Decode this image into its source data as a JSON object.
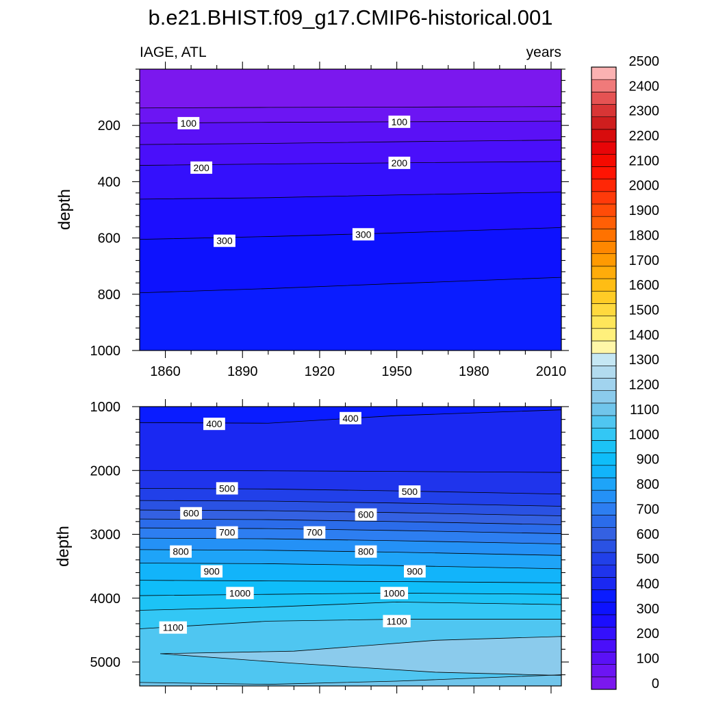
{
  "figure": {
    "title": "b.e21.BHIST.f09_g17.CMIP6-historical.001",
    "variable_label": "IAGE, ATL",
    "units_label": "years"
  },
  "chart_data": [
    {
      "type": "heatmap",
      "subtype": "filled-contour",
      "panel": "upper",
      "title": "b.e21.BHIST.f09_g17.CMIP6-historical.001",
      "left_string": "IAGE, ATL",
      "right_string": "years",
      "xlabel": "",
      "ylabel": "depth",
      "xlim": [
        1850,
        2014
      ],
      "ylim": [
        1000,
        0
      ],
      "y_reversed": true,
      "x_ticks": [
        1860,
        1890,
        1920,
        1950,
        1980,
        2010
      ],
      "y_ticks": [
        200,
        400,
        600,
        800,
        1000
      ],
      "contour_interval": 50,
      "contours": [
        {
          "level": 50,
          "x": [
            1850,
            1900,
            1950,
            2014
          ],
          "y": [
            138,
            136,
            135,
            133
          ]
        },
        {
          "level": 100,
          "x": [
            1850,
            1900,
            1950,
            2014
          ],
          "y": [
            192,
            189,
            187,
            185
          ]
        },
        {
          "level": 150,
          "x": [
            1850,
            1900,
            1950,
            2014
          ],
          "y": [
            268,
            264,
            258,
            252
          ]
        },
        {
          "level": 200,
          "x": [
            1850,
            1900,
            1950,
            2014
          ],
          "y": [
            342,
            337,
            333,
            328
          ]
        },
        {
          "level": 250,
          "x": [
            1850,
            1900,
            1950,
            2014
          ],
          "y": [
            462,
            457,
            447,
            437
          ]
        },
        {
          "level": 300,
          "x": [
            1850,
            1900,
            1950,
            2014
          ],
          "y": [
            605,
            595,
            582,
            563
          ]
        },
        {
          "level": 350,
          "x": [
            1850,
            1900,
            1950,
            2014
          ],
          "y": [
            795,
            780,
            762,
            740
          ]
        }
      ],
      "contour_labels": [
        {
          "text": "100",
          "x": 1869,
          "y": 192
        },
        {
          "text": "100",
          "x": 1951,
          "y": 187
        },
        {
          "text": "200",
          "x": 1874,
          "y": 350
        },
        {
          "text": "200",
          "x": 1951,
          "y": 333
        },
        {
          "text": "300",
          "x": 1883,
          "y": 610
        },
        {
          "text": "300",
          "x": 1937,
          "y": 587
        }
      ]
    },
    {
      "type": "heatmap",
      "subtype": "filled-contour",
      "panel": "lower",
      "xlabel": "",
      "ylabel": "depth",
      "xlim": [
        1850,
        2014
      ],
      "ylim": [
        5375,
        1000
      ],
      "y_reversed": true,
      "y_ticks": [
        1000,
        2000,
        3000,
        4000,
        5000
      ],
      "contour_interval": 50,
      "contours": [
        {
          "level": 400,
          "x": [
            1850,
            1900,
            1950,
            2014
          ],
          "y": [
            1250,
            1260,
            1140,
            1050
          ]
        },
        {
          "level": 450,
          "x": [
            1850,
            1900,
            1950,
            2014
          ],
          "y": [
            2000,
            2005,
            2015,
            2030
          ]
        },
        {
          "level": 500,
          "x": [
            1850,
            1900,
            1950,
            2014
          ],
          "y": [
            2280,
            2290,
            2320,
            2370
          ]
        },
        {
          "level": 550,
          "x": [
            1850,
            1900,
            1950,
            2014
          ],
          "y": [
            2470,
            2480,
            2510,
            2560
          ]
        },
        {
          "level": 600,
          "x": [
            1850,
            1900,
            1950,
            2014
          ],
          "y": [
            2620,
            2630,
            2660,
            2710
          ]
        },
        {
          "level": 650,
          "x": [
            1850,
            1900,
            1950,
            2014
          ],
          "y": [
            2760,
            2770,
            2800,
            2850
          ]
        },
        {
          "level": 700,
          "x": [
            1850,
            1900,
            1950,
            2014
          ],
          "y": [
            2900,
            2910,
            2940,
            2990
          ]
        },
        {
          "level": 750,
          "x": [
            1850,
            1900,
            1950,
            2014
          ],
          "y": [
            3060,
            3070,
            3100,
            3150
          ]
        },
        {
          "level": 800,
          "x": [
            1850,
            1900,
            1950,
            2014
          ],
          "y": [
            3240,
            3250,
            3280,
            3330
          ]
        },
        {
          "level": 850,
          "x": [
            1850,
            1900,
            1950,
            2014
          ],
          "y": [
            3450,
            3460,
            3490,
            3540
          ]
        },
        {
          "level": 900,
          "x": [
            1850,
            1900,
            1950,
            2014
          ],
          "y": [
            3720,
            3730,
            3740,
            3760
          ]
        },
        {
          "level": 950,
          "x": [
            1850,
            1900,
            1950,
            2014
          ],
          "y": [
            3960,
            3940,
            3920,
            3940
          ]
        },
        {
          "level": 1000,
          "x": [
            1850,
            1900,
            1950,
            2014
          ],
          "y": [
            4190,
            4140,
            4060,
            4100
          ]
        },
        {
          "level": 1050,
          "x": [
            1850,
            1900,
            1950,
            2014
          ],
          "y": [
            4480,
            4360,
            4330,
            4330
          ]
        },
        {
          "level": 1100,
          "x": [
            1850,
            1900,
            1950,
            2014
          ],
          "y": [
            5320,
            5350,
            5300,
            5200
          ]
        }
      ],
      "region_1150": {
        "x": [
          1858,
          1910,
          1965,
          2014
        ],
        "upper_y": [
          4870,
          4830,
          4660,
          4600
        ],
        "lower_y": [
          4870,
          5020,
          5160,
          5210
        ]
      },
      "contour_labels": [
        {
          "text": "400",
          "x": 1879,
          "y": 1270
        },
        {
          "text": "400",
          "x": 1932,
          "y": 1180
        },
        {
          "text": "500",
          "x": 1884,
          "y": 2280
        },
        {
          "text": "500",
          "x": 1955,
          "y": 2330
        },
        {
          "text": "600",
          "x": 1870,
          "y": 2670
        },
        {
          "text": "600",
          "x": 1938,
          "y": 2690
        },
        {
          "text": "700",
          "x": 1884,
          "y": 2970
        },
        {
          "text": "700",
          "x": 1918,
          "y": 2970
        },
        {
          "text": "800",
          "x": 1866,
          "y": 3270
        },
        {
          "text": "800",
          "x": 1938,
          "y": 3270
        },
        {
          "text": "900",
          "x": 1878,
          "y": 3580
        },
        {
          "text": "900",
          "x": 1957,
          "y": 3580
        },
        {
          "text": "1000",
          "x": 1889,
          "y": 3920
        },
        {
          "text": "1000",
          "x": 1949,
          "y": 3920
        },
        {
          "text": "1100",
          "x": 1863,
          "y": 4460
        },
        {
          "text": "1100",
          "x": 1950,
          "y": 4360
        }
      ]
    }
  ],
  "colorbar": {
    "tick_labels": [
      "2500",
      "2400",
      "2300",
      "2200",
      "2100",
      "2000",
      "1900",
      "1800",
      "1700",
      "1600",
      "1500",
      "1400",
      "1300",
      "1200",
      "1100",
      "1000",
      "900",
      "800",
      "700",
      "600",
      "500",
      "400",
      "300",
      "200",
      "100",
      "0"
    ],
    "colors": [
      "#7b18ee",
      "#6c15f3",
      "#5a11f6",
      "#4a0ffa",
      "#3410fc",
      "#1c0efe",
      "#0d12fe",
      "#0a1cff",
      "#1a28f2",
      "#1f34ec",
      "#2140e9",
      "#2a52e3",
      "#3461e2",
      "#2b6cea",
      "#2d7ef1",
      "#2491f6",
      "#1ea4f8",
      "#12b4fa",
      "#0fbdf9",
      "#1cc3f6",
      "#33c7f5",
      "#4fc6f1",
      "#70c5eb",
      "#8bcbec",
      "#a1d3ee",
      "#b2dbef",
      "#c5e7f4",
      "#fff6a8",
      "#fff07c",
      "#ffe65a",
      "#ffd93e",
      "#ffcc26",
      "#ffbd14",
      "#ffac0a",
      "#ff9a02",
      "#ff8700",
      "#ff7200",
      "#ff5f05",
      "#ff4c08",
      "#ff3a0a",
      "#ff2706",
      "#ff1403",
      "#f50a00",
      "#e80508",
      "#d80c0d",
      "#cf1e1e",
      "#d83535",
      "#e55353",
      "#f07a7a",
      "#fbb2b2"
    ]
  }
}
